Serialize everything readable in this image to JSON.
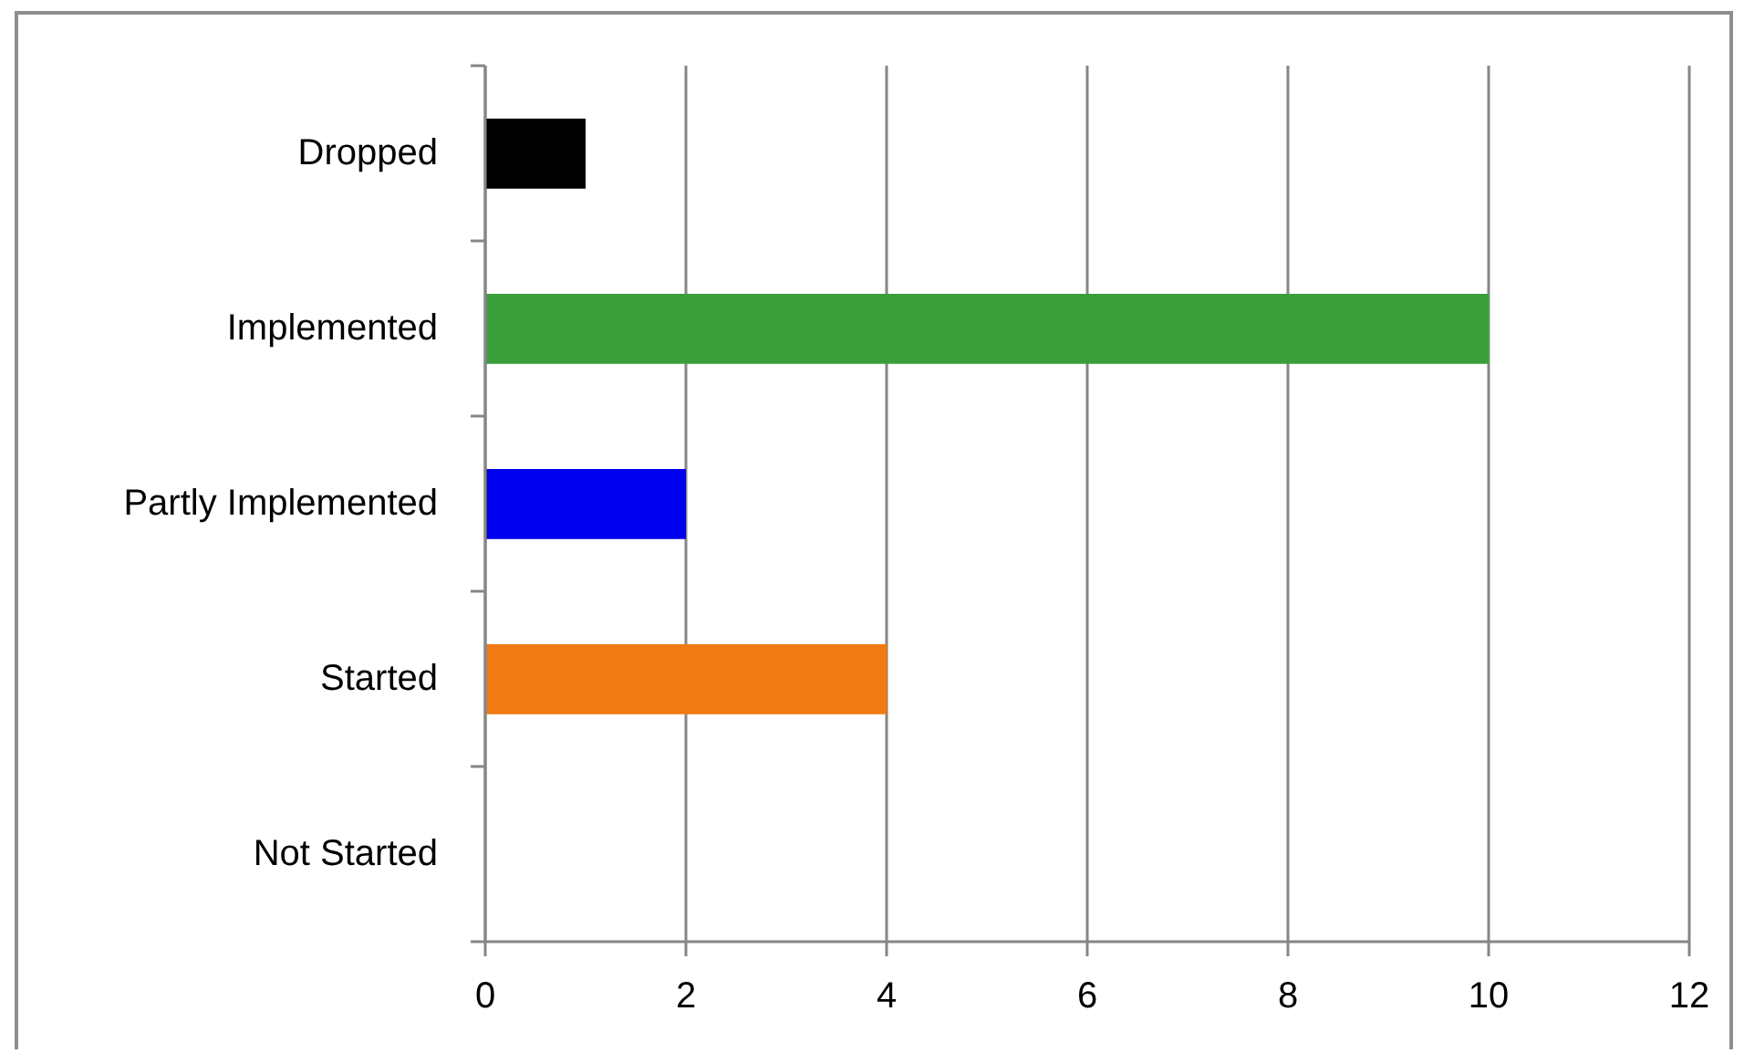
{
  "chart_data": {
    "type": "bar",
    "orientation": "horizontal",
    "categories": [
      "Dropped",
      "Implemented",
      "Partly Implemented",
      "Started",
      "Not Started"
    ],
    "values": [
      1,
      10,
      2,
      4,
      0
    ],
    "colors": [
      "#000000",
      "#3a9f3a",
      "#0000f0",
      "#f07a14",
      "#4f81bd"
    ],
    "xlim": [
      0,
      12
    ],
    "xticks": [
      0,
      2,
      4,
      6,
      8,
      10,
      12
    ],
    "grid": "x"
  }
}
